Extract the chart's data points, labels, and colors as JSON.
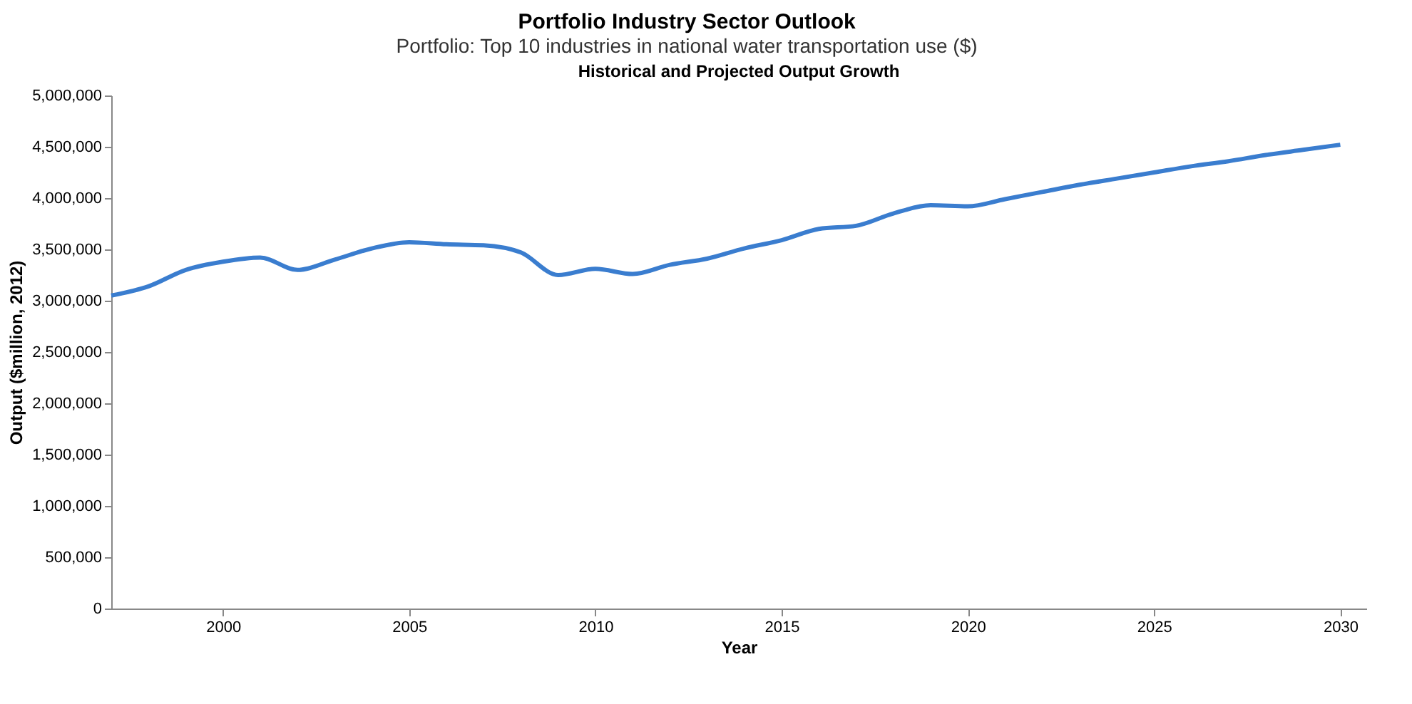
{
  "chart_data": {
    "type": "line",
    "title": "Portfolio Industry Sector Outlook",
    "subtitle": "Portfolio: Top 10 industries in national water transportation use ($)",
    "annotations": [
      "Historical and Projected Output Growth"
    ],
    "xlabel": "Year",
    "ylabel": "Output ($million, 2012)",
    "x": [
      1997,
      1998,
      1999,
      2000,
      2001,
      2002,
      2003,
      2004,
      2005,
      2006,
      2007,
      2008,
      2009,
      2010,
      2011,
      2012,
      2013,
      2014,
      2015,
      2016,
      2017,
      2018,
      2019,
      2020,
      2021,
      2022,
      2023,
      2024,
      2025,
      2026,
      2027,
      2028,
      2029,
      2030
    ],
    "series": [
      {
        "color": "#3a7dcf",
        "values": [
          3050000,
          3140000,
          3300000,
          3380000,
          3420000,
          3300000,
          3400000,
          3510000,
          3570000,
          3550000,
          3540000,
          3470000,
          3250000,
          3310000,
          3260000,
          3350000,
          3410000,
          3510000,
          3590000,
          3700000,
          3730000,
          3850000,
          3930000,
          3920000,
          3990000,
          4060000,
          4130000,
          4190000,
          4250000,
          4310000,
          4360000,
          4420000,
          4470000,
          4520000
        ]
      }
    ],
    "xlim": [
      1997,
      2030.7
    ],
    "xticks": [
      2000,
      2005,
      2010,
      2015,
      2020,
      2025,
      2030
    ],
    "ylim": [
      0,
      5000000
    ],
    "yticks": [
      0,
      {
        "value": 500000,
        "label": "500,000"
      },
      {
        "value": 1000000,
        "label": "1,000,000"
      },
      {
        "value": 1500000,
        "label": "1,500,000"
      },
      {
        "value": 2000000,
        "label": "2,000,000"
      },
      {
        "value": 2500000,
        "label": "2,500,000"
      },
      {
        "value": 3000000,
        "label": "3,000,000"
      },
      {
        "value": 3500000,
        "label": "3,500,000"
      },
      {
        "value": 4000000,
        "label": "4,000,000"
      },
      {
        "value": 4500000,
        "label": "4,500,000"
      },
      {
        "value": 5000000,
        "label": "5,000,000"
      }
    ],
    "grid": false,
    "legend": false,
    "marker": "none",
    "line_style": "solid"
  }
}
